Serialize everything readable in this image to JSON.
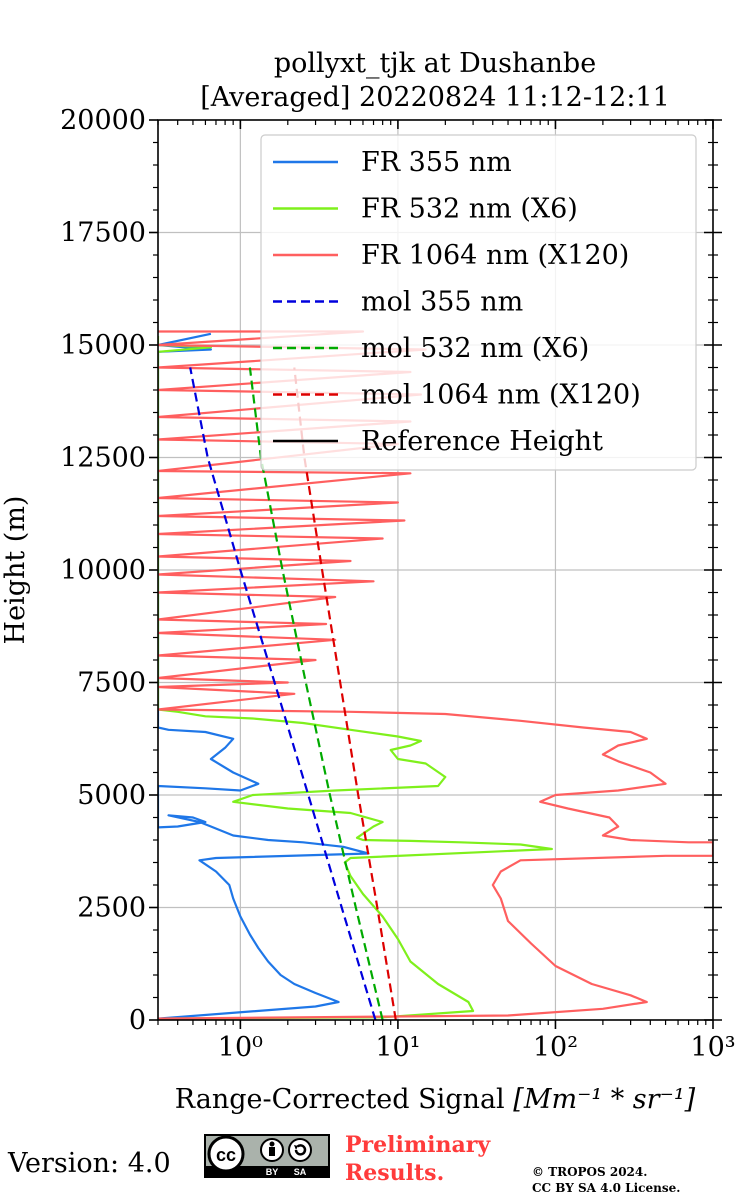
{
  "chart_data": {
    "type": "line",
    "title_line1": "pollyxt_tjk at Dushanbe",
    "title_line2": "[Averaged] 20220824 11:12-12:11",
    "xlabel": "Range-Corrected Signal",
    "xlabel_unit": "[Mm⁻¹ * sr⁻¹]",
    "ylabel": "Height (m)",
    "x_scale": "log",
    "xlim": [
      0.3,
      1000
    ],
    "ylim": [
      0,
      20000
    ],
    "y_ticks": [
      0,
      2500,
      5000,
      7500,
      10000,
      12500,
      15000,
      17500,
      20000
    ],
    "x_ticks": [
      {
        "value": 1,
        "label": "10⁰"
      },
      {
        "value": 10,
        "label": "10¹"
      },
      {
        "value": 100,
        "label": "10²"
      },
      {
        "value": 1000,
        "label": "10³"
      }
    ],
    "grid": true,
    "legend_position": "upper right",
    "legend": [
      {
        "label": "FR 355 nm",
        "color": "#1f77e8",
        "style": "solid"
      },
      {
        "label": "FR 532 nm (X6)",
        "color": "#7ff01c",
        "style": "solid"
      },
      {
        "label": "FR 1064 nm (X120)",
        "color": "#ff5f5f",
        "style": "solid"
      },
      {
        "label": "mol 355 nm",
        "color": "#0000dd",
        "style": "dashed"
      },
      {
        "label": "mol 532 nm (X6)",
        "color": "#00aa00",
        "style": "dashed"
      },
      {
        "label": "mol 1064 nm (X120)",
        "color": "#dd0000",
        "style": "dashed"
      },
      {
        "label": "Reference Height",
        "color": "#000000",
        "style": "solid"
      }
    ],
    "series": [
      {
        "name": "FR 355 nm",
        "color": "#1f77e8",
        "style": "solid",
        "points": [
          [
            0.3,
            30
          ],
          [
            3.0,
            300
          ],
          [
            4.2,
            400
          ],
          [
            3.0,
            600
          ],
          [
            2.2,
            800
          ],
          [
            1.8,
            1000
          ],
          [
            1.5,
            1300
          ],
          [
            1.3,
            1600
          ],
          [
            1.15,
            1900
          ],
          [
            1.0,
            2300
          ],
          [
            0.9,
            2700
          ],
          [
            0.85,
            3000
          ],
          [
            0.7,
            3300
          ],
          [
            0.55,
            3550
          ],
          [
            0.7,
            3600
          ],
          [
            6.5,
            3700
          ],
          [
            4.5,
            3850
          ],
          [
            2.5,
            3950
          ],
          [
            1.5,
            4000
          ],
          [
            0.9,
            4100
          ],
          [
            0.65,
            4300
          ],
          [
            0.55,
            4400
          ],
          [
            0.35,
            4550
          ],
          [
            0.5,
            4500
          ],
          [
            0.6,
            4400
          ],
          [
            0.4,
            4300
          ],
          [
            0.3,
            4280
          ],
          [
            0.3,
            5200
          ],
          [
            0.6,
            5150
          ],
          [
            1.0,
            5100
          ],
          [
            1.3,
            5250
          ],
          [
            0.9,
            5500
          ],
          [
            0.65,
            5800
          ],
          [
            0.8,
            6050
          ],
          [
            0.9,
            6250
          ],
          [
            0.6,
            6400
          ],
          [
            0.35,
            6450
          ],
          [
            0.3,
            6500
          ],
          [
            0.3,
            14850
          ],
          [
            0.65,
            14900
          ],
          [
            0.3,
            15000
          ],
          [
            0.65,
            15250
          ]
        ]
      },
      {
        "name": "FR 532 nm (X6)",
        "color": "#7ff01c",
        "style": "solid",
        "points": [
          [
            0.3,
            30
          ],
          [
            8,
            60
          ],
          [
            30,
            200
          ],
          [
            28,
            400
          ],
          [
            18,
            800
          ],
          [
            12,
            1300
          ],
          [
            10,
            1800
          ],
          [
            8,
            2300
          ],
          [
            6,
            2800
          ],
          [
            5,
            3200
          ],
          [
            4.6,
            3500
          ],
          [
            5,
            3600
          ],
          [
            95,
            3800
          ],
          [
            60,
            3900
          ],
          [
            25,
            3950
          ],
          [
            12,
            3980
          ],
          [
            6,
            4000
          ],
          [
            5.5,
            4050
          ],
          [
            7,
            4300
          ],
          [
            8,
            4400
          ],
          [
            5,
            4600
          ],
          [
            2,
            4700
          ],
          [
            0.9,
            4850
          ],
          [
            1.2,
            5000
          ],
          [
            4,
            5100
          ],
          [
            18,
            5200
          ],
          [
            20,
            5400
          ],
          [
            15,
            5700
          ],
          [
            10,
            5800
          ],
          [
            9,
            6000
          ],
          [
            12,
            6100
          ],
          [
            14,
            6200
          ],
          [
            10,
            6300
          ],
          [
            5,
            6450
          ],
          [
            2.5,
            6600
          ],
          [
            1.2,
            6700
          ],
          [
            0.6,
            6750
          ],
          [
            0.4,
            6850
          ],
          [
            0.3,
            6900
          ],
          [
            0.3,
            14850
          ],
          [
            0.65,
            14950
          ],
          [
            0.3,
            15000
          ],
          [
            0.3,
            15200
          ]
        ]
      },
      {
        "name": "FR 1064 nm (X120)",
        "color": "#ff5f5f",
        "style": "solid",
        "points": [
          [
            0.3,
            30
          ],
          [
            50,
            100
          ],
          [
            200,
            250
          ],
          [
            380,
            400
          ],
          [
            300,
            550
          ],
          [
            170,
            800
          ],
          [
            100,
            1200
          ],
          [
            70,
            1700
          ],
          [
            50,
            2200
          ],
          [
            45,
            2700
          ],
          [
            40,
            3000
          ],
          [
            45,
            3300
          ],
          [
            60,
            3550
          ],
          [
            500,
            3650
          ],
          [
            1000,
            3650
          ],
          [
            1000,
            3950
          ],
          [
            700,
            3950
          ],
          [
            300,
            4000
          ],
          [
            200,
            4100
          ],
          [
            250,
            4300
          ],
          [
            220,
            4500
          ],
          [
            120,
            4700
          ],
          [
            80,
            4850
          ],
          [
            100,
            5000
          ],
          [
            250,
            5100
          ],
          [
            500,
            5250
          ],
          [
            400,
            5500
          ],
          [
            250,
            5750
          ],
          [
            200,
            5900
          ],
          [
            250,
            6100
          ],
          [
            380,
            6250
          ],
          [
            300,
            6400
          ],
          [
            150,
            6500
          ],
          [
            60,
            6650
          ],
          [
            20,
            6800
          ],
          [
            5,
            6850
          ],
          [
            0.3,
            6900
          ],
          [
            2.2,
            7250
          ],
          [
            0.3,
            7400
          ],
          [
            2.0,
            7500
          ],
          [
            0.3,
            7600
          ],
          [
            3.0,
            8000
          ],
          [
            0.3,
            8100
          ],
          [
            4.0,
            8450
          ],
          [
            0.3,
            8600
          ],
          [
            3.5,
            8800
          ],
          [
            0.3,
            8900
          ],
          [
            4.0,
            9400
          ],
          [
            0.3,
            9500
          ],
          [
            7.0,
            9750
          ],
          [
            0.3,
            9900
          ],
          [
            5.0,
            10200
          ],
          [
            0.3,
            10300
          ],
          [
            8.0,
            10700
          ],
          [
            0.3,
            10800
          ],
          [
            11,
            11100
          ],
          [
            0.3,
            11200
          ],
          [
            10,
            11500
          ],
          [
            0.3,
            11600
          ],
          [
            12,
            12150
          ],
          [
            0.3,
            12200
          ],
          [
            10,
            12800
          ],
          [
            0.3,
            12900
          ],
          [
            12,
            13300
          ],
          [
            0.3,
            13400
          ],
          [
            14,
            13900
          ],
          [
            0.3,
            14000
          ],
          [
            12,
            14400
          ],
          [
            0.3,
            14500
          ],
          [
            15,
            14900
          ],
          [
            0.3,
            15000
          ],
          [
            6,
            15300
          ],
          [
            0.3,
            15300
          ]
        ]
      },
      {
        "name": "mol 355 nm",
        "color": "#0000dd",
        "style": "dashed",
        "points": [
          [
            7.2,
            0
          ],
          [
            4.4,
            2500
          ],
          [
            2.7,
            5000
          ],
          [
            1.65,
            7500
          ],
          [
            1.0,
            10000
          ],
          [
            0.62,
            12500
          ],
          [
            0.48,
            14500
          ]
        ]
      },
      {
        "name": "mol 532 nm (X6)",
        "color": "#00aa00",
        "style": "dashed",
        "points": [
          [
            8.0,
            0
          ],
          [
            5.4,
            2500
          ],
          [
            3.7,
            5000
          ],
          [
            2.6,
            7500
          ],
          [
            1.85,
            10000
          ],
          [
            1.35,
            12500
          ],
          [
            1.15,
            14500
          ]
        ]
      },
      {
        "name": "mol 1064 nm (X120)",
        "color": "#dd0000",
        "style": "dashed",
        "points": [
          [
            9.7,
            0
          ],
          [
            7.4,
            2500
          ],
          [
            5.6,
            5000
          ],
          [
            4.3,
            7500
          ],
          [
            3.3,
            10000
          ],
          [
            2.55,
            12500
          ],
          [
            2.2,
            14500
          ]
        ]
      }
    ]
  },
  "footer": {
    "version": "Version: 4.0",
    "cc_label": "cc",
    "by_label": "BY",
    "sa_label": "SA",
    "preliminary_line1": "Preliminary",
    "preliminary_line2": "Results.",
    "copyright_line1": "© TROPOS 2024.",
    "copyright_line2": "CC BY SA 4.0 License."
  }
}
